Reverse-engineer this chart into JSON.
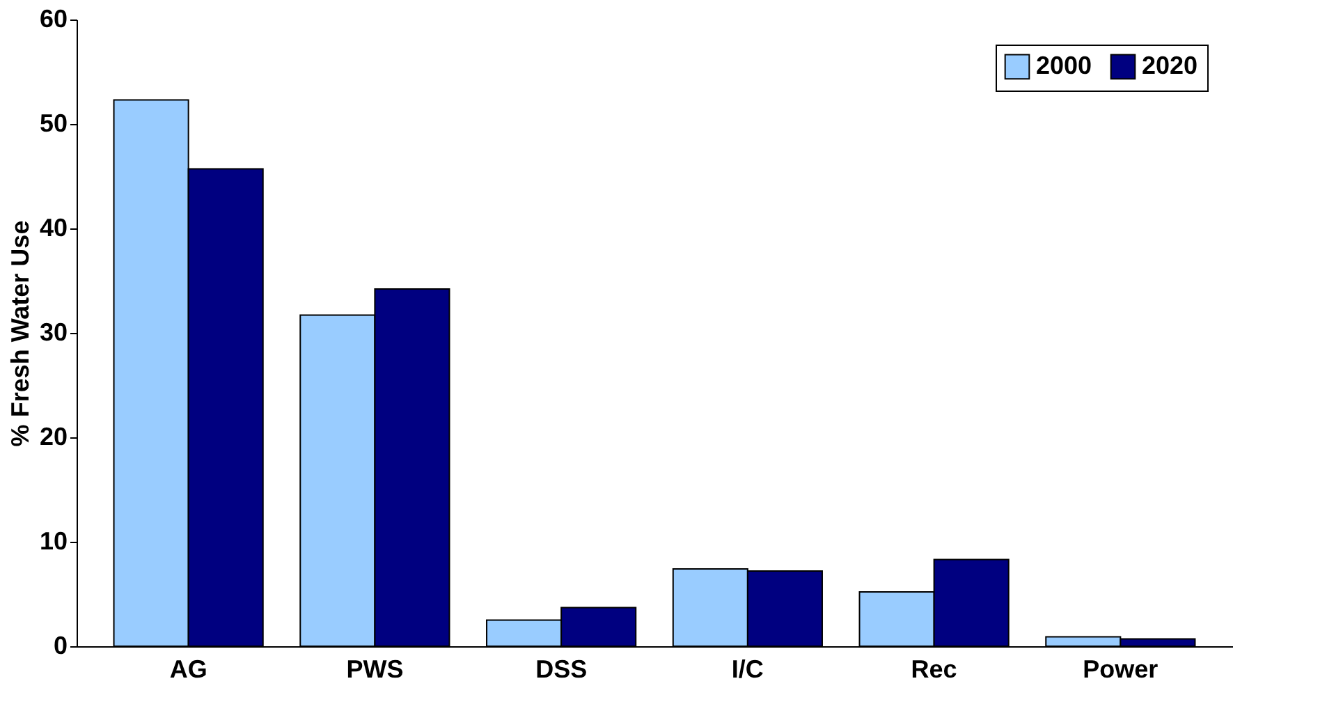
{
  "chart_data": {
    "type": "bar",
    "ylabel": "% Fresh Water Use",
    "categories": [
      "AG",
      "PWS",
      "DSS",
      "I/C",
      "Rec",
      "Power"
    ],
    "series": [
      {
        "name": "2000",
        "color": "#99ccff",
        "values": [
          52.3,
          31.7,
          2.5,
          7.4,
          5.2,
          0.9
        ]
      },
      {
        "name": "2020",
        "color": "#000080",
        "values": [
          45.7,
          34.2,
          3.7,
          7.2,
          8.3,
          0.7
        ]
      }
    ],
    "ylim": [
      0,
      60
    ],
    "yticks": [
      0,
      10,
      20,
      30,
      40,
      50,
      60
    ],
    "grid": false,
    "legend": "top right"
  }
}
